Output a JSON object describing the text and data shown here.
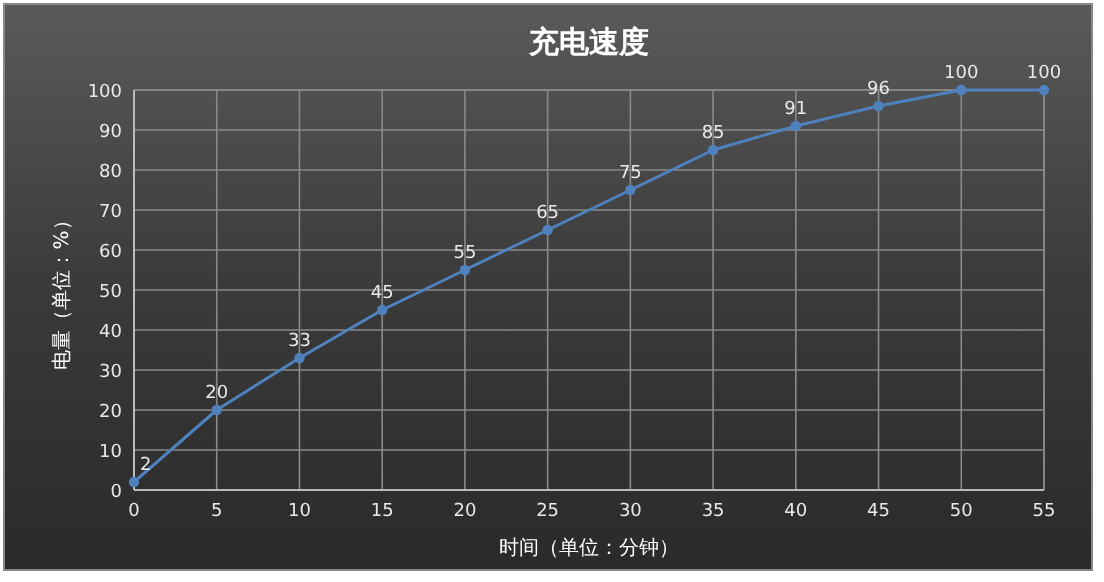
{
  "chart_data": {
    "type": "line",
    "title": "充电速度",
    "xlabel": "时间（单位：分钟）",
    "ylabel": "电量（单位：%）",
    "x": [
      0,
      5,
      10,
      15,
      20,
      25,
      30,
      35,
      40,
      45,
      50,
      55
    ],
    "series": [
      {
        "color": "#4f81bd",
        "values": [
          2,
          20,
          33,
          45,
          55,
          65,
          75,
          85,
          91,
          96,
          100,
          100
        ]
      }
    ],
    "xlim": [
      0,
      55
    ],
    "xticks": [
      0,
      5,
      10,
      15,
      20,
      25,
      30,
      35,
      40,
      45,
      50,
      55
    ],
    "ylim": [
      0,
      100
    ],
    "yticks": [
      0,
      10,
      20,
      30,
      40,
      50,
      60,
      70,
      80,
      90,
      100
    ],
    "grid": true,
    "marker": "circle",
    "line_style": "solid",
    "data_labels": true
  }
}
